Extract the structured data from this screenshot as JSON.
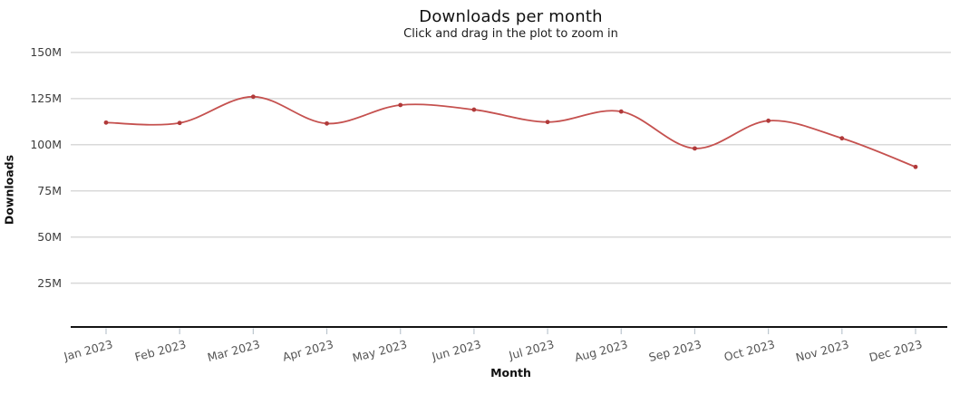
{
  "header": {
    "title": "Downloads per month",
    "subtitle": "Click and drag in the plot to zoom in"
  },
  "chart_data": {
    "type": "line",
    "title": "Downloads per month",
    "subtitle": "Click and drag in the plot to zoom in",
    "xlabel": "Month",
    "ylabel": "Downloads",
    "categories": [
      "Jan 2023",
      "Feb 2023",
      "Mar 2023",
      "Apr 2023",
      "May 2023",
      "Jun 2023",
      "Jul 2023",
      "Aug 2023",
      "Sep 2023",
      "Oct 2023",
      "Nov 2023",
      "Dec 2023"
    ],
    "series": [
      {
        "name": "Downloads",
        "unit": "M",
        "values": [
          112,
          111.8,
          126,
          111.5,
          121.5,
          119,
          112.3,
          118,
          98,
          113,
          103.5,
          88
        ]
      }
    ],
    "yticks": {
      "values": [
        25,
        50,
        75,
        100,
        125,
        150
      ],
      "labels": [
        "25M",
        "50M",
        "75M",
        "100M",
        "125M",
        "150M"
      ]
    },
    "ylim": [
      0,
      155
    ],
    "grid": "horizontal",
    "legend": "none",
    "colors": {
      "line": "#c5514f",
      "marker": "#b03a3a",
      "gridline": "#d9d9d9",
      "axis_line": "#141414",
      "tick_mark": "#bcc6cf",
      "tick_label": "#555555"
    }
  }
}
